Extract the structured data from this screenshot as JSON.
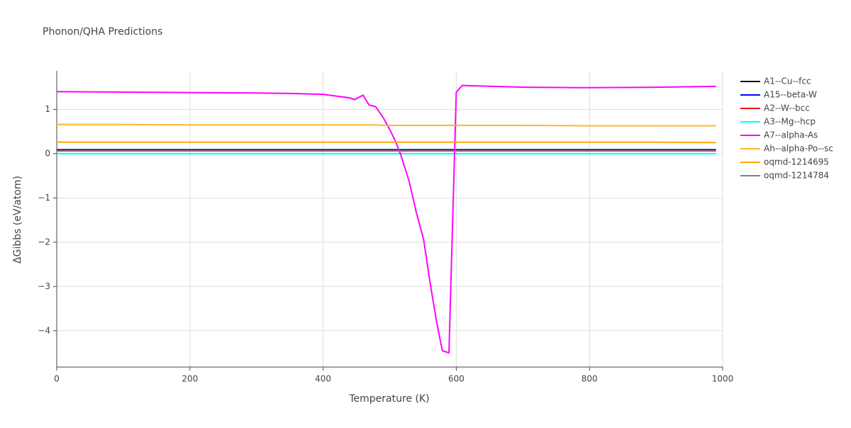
{
  "chart_data": {
    "type": "line",
    "title": "Phonon/QHA Predictions",
    "x_label": "Temperature (K)",
    "y_label": "ΔGibbs (eV/atom)",
    "xlim": [
      0,
      1000
    ],
    "ylim": [
      -4.82,
      1.87
    ],
    "xticks": [
      0,
      200,
      400,
      600,
      800,
      1000
    ],
    "yticks": [
      {
        "value": -4,
        "label": "−4"
      },
      {
        "value": -3,
        "label": "−3"
      },
      {
        "value": -2,
        "label": "−2"
      },
      {
        "value": -1,
        "label": "−1"
      },
      0,
      1
    ],
    "grid": true,
    "legend": "right",
    "x": [
      0,
      100,
      200,
      300,
      350,
      400,
      420,
      440,
      447,
      460,
      469,
      479,
      490,
      500,
      509,
      516,
      529,
      540,
      551,
      560,
      570,
      579,
      589,
      594,
      600,
      609,
      703,
      788,
      900,
      990
    ],
    "series": [
      {
        "name": "A1--Cu--fcc",
        "color": "#000000",
        "values": [
          0.08,
          0.08,
          0.08,
          0.08,
          0.08,
          0.08,
          0.08,
          0.08,
          0.08,
          0.08,
          0.08,
          0.08,
          0.08,
          0.08,
          0.08,
          0.08,
          0.08,
          0.08,
          0.08,
          0.08,
          0.08,
          0.08,
          0.08,
          0.08,
          0.08,
          0.08,
          0.08,
          0.08,
          0.08,
          0.08
        ]
      },
      {
        "name": "A15--beta-W",
        "color": "#0000ff",
        "values": [
          0.09,
          0.09,
          0.09,
          0.09,
          0.09,
          0.09,
          0.09,
          0.09,
          0.09,
          0.09,
          0.09,
          0.09,
          0.09,
          0.09,
          0.09,
          0.09,
          0.09,
          0.09,
          0.09,
          0.09,
          0.09,
          0.09,
          0.09,
          0.09,
          0.09,
          0.09,
          0.09,
          0.09,
          0.09,
          0.09
        ]
      },
      {
        "name": "A2--W--bcc",
        "color": "#ff0000",
        "values": [
          0.07,
          0.07,
          0.07,
          0.07,
          0.07,
          0.07,
          0.07,
          0.07,
          0.07,
          0.07,
          0.07,
          0.07,
          0.07,
          0.07,
          0.07,
          0.07,
          0.07,
          0.07,
          0.07,
          0.07,
          0.07,
          0.07,
          0.07,
          0.07,
          0.07,
          0.07,
          0.07,
          0.07,
          0.07,
          0.07
        ]
      },
      {
        "name": "A3--Mg--hcp",
        "color": "#00ffff",
        "values": [
          0,
          0,
          0,
          0,
          0,
          0,
          0,
          0,
          0,
          0,
          0,
          0,
          0,
          0,
          0,
          0,
          0,
          0,
          0,
          0,
          0,
          0,
          0,
          0,
          0,
          0,
          0,
          0,
          0,
          0
        ]
      },
      {
        "name": "A7--alpha-As",
        "color": "#ff00ff",
        "values": [
          1.4,
          1.39,
          1.38,
          1.37,
          1.36,
          1.34,
          1.3,
          1.26,
          1.22,
          1.32,
          1.1,
          1.06,
          0.82,
          0.55,
          0.27,
          0,
          -0.61,
          -1.33,
          -1.94,
          -2.85,
          -3.76,
          -4.45,
          -4.5,
          -1.81,
          1.39,
          1.54,
          1.5,
          1.49,
          1.5,
          1.52
        ]
      },
      {
        "name": "Ah--alpha-Po--sc",
        "color": "#ffb52e",
        "values": [
          0.66,
          0.66,
          0.65,
          0.65,
          0.65,
          0.65,
          0.65,
          0.65,
          0.65,
          0.65,
          0.65,
          0.65,
          0.64,
          0.64,
          0.64,
          0.64,
          0.64,
          0.64,
          0.64,
          0.64,
          0.64,
          0.64,
          0.64,
          0.64,
          0.64,
          0.64,
          0.64,
          0.63,
          0.63,
          0.63
        ]
      },
      {
        "name": "oqmd-1214695",
        "color": "#ffa500",
        "values": [
          0.26,
          0.26,
          0.26,
          0.26,
          0.26,
          0.26,
          0.26,
          0.26,
          0.26,
          0.26,
          0.26,
          0.26,
          0.26,
          0.26,
          0.26,
          0.26,
          0.26,
          0.26,
          0.26,
          0.26,
          0.26,
          0.26,
          0.26,
          0.26,
          0.26,
          0.26,
          0.26,
          0.26,
          0.26,
          0.25
        ]
      },
      {
        "name": "oqmd-1214784",
        "color": "#808080",
        "values": [
          0.06,
          0.06,
          0.06,
          0.06,
          0.06,
          0.06,
          0.06,
          0.06,
          0.06,
          0.06,
          0.06,
          0.06,
          0.06,
          0.06,
          0.06,
          0.06,
          0.06,
          0.06,
          0.06,
          0.06,
          0.06,
          0.06,
          0.06,
          0.06,
          0.06,
          0.06,
          0.06,
          0.06,
          0.06,
          0.06
        ]
      }
    ]
  }
}
